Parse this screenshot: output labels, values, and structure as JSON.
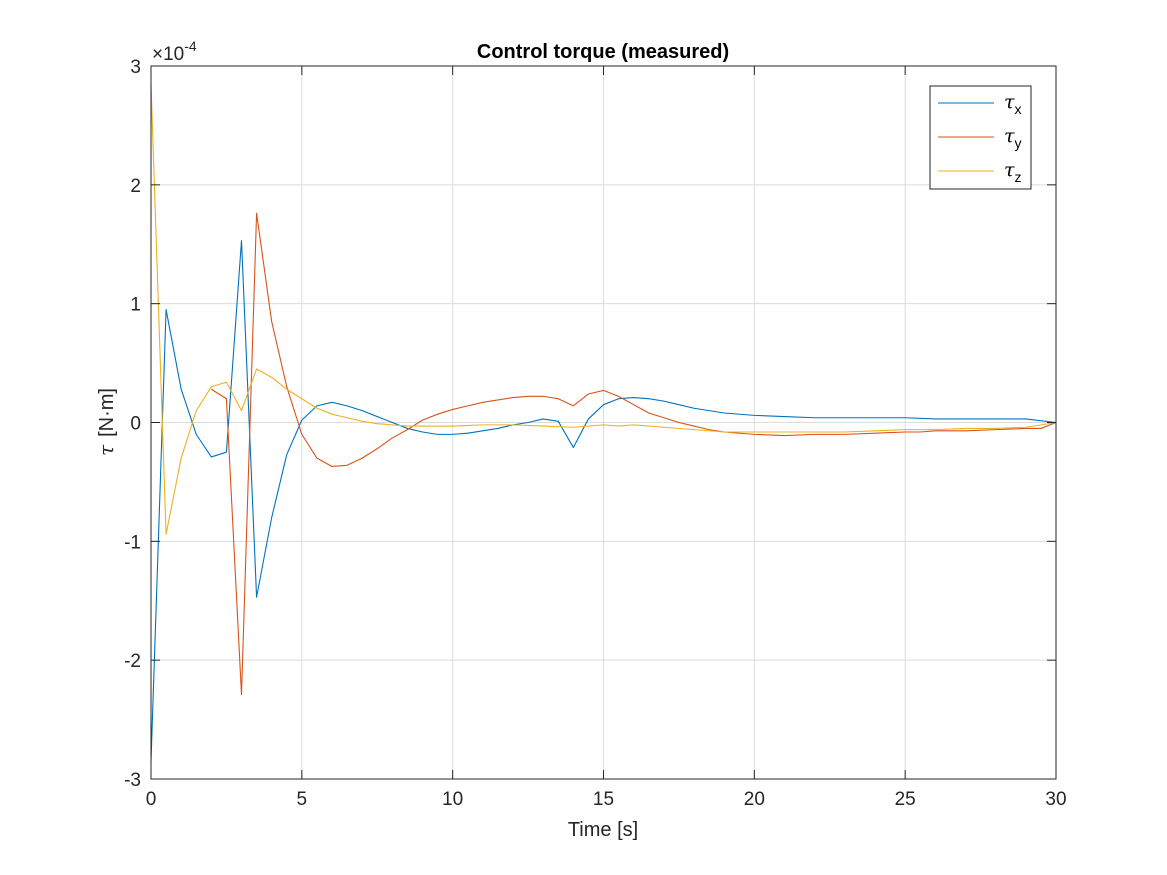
{
  "chart_data": {
    "type": "line",
    "title": "Control torque (measured)",
    "xlabel": "Time [s]",
    "ylabel_symbol": "τ",
    "ylabel_units": "[N·m]",
    "exponent_base": "×10",
    "exponent_power": "-4",
    "xlim": [
      0,
      30
    ],
    "ylim": [
      -3,
      3
    ],
    "xticks": [
      0,
      5,
      10,
      15,
      20,
      25,
      30
    ],
    "yticks": [
      -3,
      -2,
      -1,
      0,
      1,
      2,
      3
    ],
    "grid": true,
    "legend_position": "top-right",
    "series": [
      {
        "name": "τ",
        "subscript": "x",
        "color": "#0072BD",
        "points": [
          [
            0,
            -2.85
          ],
          [
            0.5,
            0.95
          ],
          [
            1,
            0.28
          ],
          [
            1.5,
            -0.1
          ],
          [
            2,
            -0.29
          ],
          [
            2.5,
            -0.25
          ],
          [
            3,
            1.53
          ],
          [
            3.5,
            -1.47
          ],
          [
            4,
            -0.8
          ],
          [
            4.5,
            -0.27
          ],
          [
            5,
            0.02
          ],
          [
            5.5,
            0.14
          ],
          [
            6,
            0.17
          ],
          [
            6.5,
            0.14
          ],
          [
            7,
            0.1
          ],
          [
            7.5,
            0.05
          ],
          [
            8,
            0.0
          ],
          [
            8.5,
            -0.05
          ],
          [
            9,
            -0.08
          ],
          [
            9.5,
            -0.1
          ],
          [
            10,
            -0.1
          ],
          [
            10.5,
            -0.09
          ],
          [
            11,
            -0.07
          ],
          [
            11.5,
            -0.05
          ],
          [
            12,
            -0.02
          ],
          [
            12.5,
            0.0
          ],
          [
            13,
            0.03
          ],
          [
            13.5,
            0.01
          ],
          [
            14,
            -0.21
          ],
          [
            14.5,
            0.03
          ],
          [
            15,
            0.15
          ],
          [
            15.5,
            0.2
          ],
          [
            16,
            0.21
          ],
          [
            16.5,
            0.2
          ],
          [
            17,
            0.18
          ],
          [
            17.5,
            0.15
          ],
          [
            18,
            0.12
          ],
          [
            18.5,
            0.1
          ],
          [
            19,
            0.08
          ],
          [
            20,
            0.06
          ],
          [
            21,
            0.05
          ],
          [
            22,
            0.04
          ],
          [
            23,
            0.04
          ],
          [
            24,
            0.04
          ],
          [
            25,
            0.04
          ],
          [
            26,
            0.03
          ],
          [
            27,
            0.03
          ],
          [
            28,
            0.03
          ],
          [
            29,
            0.03
          ],
          [
            30,
            0.0
          ]
        ]
      },
      {
        "name": "τ",
        "subscript": "y",
        "color": "#D95319",
        "points": [
          [
            2,
            0.28
          ],
          [
            2.5,
            0.2
          ],
          [
            3,
            -2.29
          ],
          [
            3.5,
            1.76
          ],
          [
            4,
            0.85
          ],
          [
            4.5,
            0.3
          ],
          [
            5,
            -0.1
          ],
          [
            5.5,
            -0.3
          ],
          [
            6,
            -0.37
          ],
          [
            6.5,
            -0.36
          ],
          [
            7,
            -0.3
          ],
          [
            7.5,
            -0.22
          ],
          [
            8,
            -0.13
          ],
          [
            8.5,
            -0.06
          ],
          [
            9,
            0.02
          ],
          [
            9.5,
            0.07
          ],
          [
            10,
            0.11
          ],
          [
            10.5,
            0.14
          ],
          [
            11,
            0.17
          ],
          [
            11.5,
            0.19
          ],
          [
            12,
            0.21
          ],
          [
            12.5,
            0.22
          ],
          [
            13,
            0.22
          ],
          [
            13.5,
            0.2
          ],
          [
            14,
            0.14
          ],
          [
            14.5,
            0.24
          ],
          [
            15,
            0.27
          ],
          [
            15.5,
            0.22
          ],
          [
            16,
            0.15
          ],
          [
            16.5,
            0.08
          ],
          [
            17,
            0.04
          ],
          [
            17.5,
            0.0
          ],
          [
            18,
            -0.03
          ],
          [
            18.5,
            -0.06
          ],
          [
            19,
            -0.08
          ],
          [
            20,
            -0.1
          ],
          [
            21,
            -0.11
          ],
          [
            22,
            -0.1
          ],
          [
            23,
            -0.1
          ],
          [
            24,
            -0.09
          ],
          [
            25,
            -0.08
          ],
          [
            25.5,
            -0.08
          ],
          [
            26,
            -0.07
          ],
          [
            27,
            -0.07
          ],
          [
            28,
            -0.06
          ],
          [
            29,
            -0.05
          ],
          [
            29.5,
            -0.05
          ],
          [
            30,
            0.0
          ]
        ]
      },
      {
        "name": "τ",
        "subscript": "z",
        "color": "#EDB120",
        "points": [
          [
            0,
            2.85
          ],
          [
            0.5,
            -0.94
          ],
          [
            1,
            -0.3
          ],
          [
            1.5,
            0.1
          ],
          [
            2,
            0.3
          ],
          [
            2.5,
            0.34
          ],
          [
            3,
            0.1
          ],
          [
            3.5,
            0.45
          ],
          [
            4,
            0.38
          ],
          [
            4.5,
            0.28
          ],
          [
            5,
            0.2
          ],
          [
            5.5,
            0.12
          ],
          [
            6,
            0.07
          ],
          [
            6.5,
            0.04
          ],
          [
            7,
            0.01
          ],
          [
            7.5,
            -0.01
          ],
          [
            8,
            -0.02
          ],
          [
            8.5,
            -0.03
          ],
          [
            9,
            -0.03
          ],
          [
            10,
            -0.03
          ],
          [
            11,
            -0.02
          ],
          [
            12,
            -0.02
          ],
          [
            13,
            -0.03
          ],
          [
            14,
            -0.04
          ],
          [
            15,
            -0.02
          ],
          [
            15.5,
            -0.03
          ],
          [
            16,
            -0.02
          ],
          [
            17,
            -0.04
          ],
          [
            18,
            -0.06
          ],
          [
            19,
            -0.08
          ],
          [
            20,
            -0.08
          ],
          [
            21,
            -0.08
          ],
          [
            22,
            -0.08
          ],
          [
            23,
            -0.08
          ],
          [
            24,
            -0.07
          ],
          [
            25,
            -0.06
          ],
          [
            26,
            -0.06
          ],
          [
            27,
            -0.05
          ],
          [
            28,
            -0.05
          ],
          [
            29,
            -0.04
          ],
          [
            30,
            0.0
          ]
        ]
      }
    ]
  }
}
